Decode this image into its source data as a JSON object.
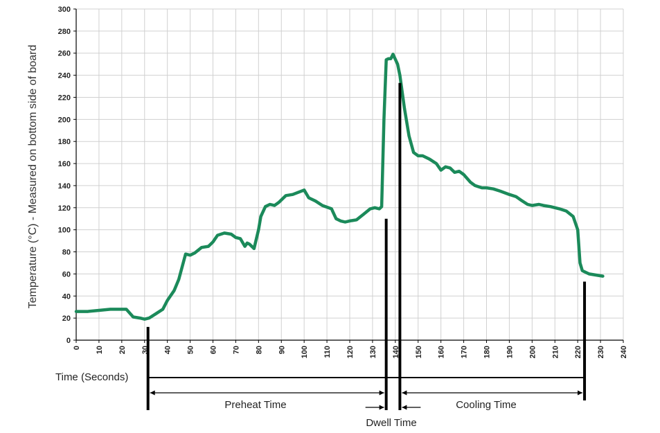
{
  "colors": {
    "curve": "#1b8a5a",
    "grid": "#d0d0d0",
    "axis": "#000000",
    "marker": "#000000"
  },
  "chart_data": {
    "type": "line",
    "title": "",
    "xlabel": "Time (Seconds)",
    "ylabel": "Temperature (°C) - Measured on bottom side of board",
    "xlim": [
      0,
      240
    ],
    "ylim": [
      0,
      300
    ],
    "x_ticks": [
      0,
      10,
      20,
      30,
      40,
      50,
      60,
      70,
      80,
      90,
      100,
      110,
      120,
      130,
      140,
      150,
      160,
      170,
      180,
      190,
      200,
      210,
      220,
      230,
      240
    ],
    "y_ticks": [
      0,
      20,
      40,
      60,
      80,
      100,
      120,
      140,
      160,
      180,
      200,
      220,
      240,
      260,
      280,
      300
    ],
    "grid": true,
    "series": [
      {
        "x": [
          0,
          5,
          10,
          15,
          20,
          22,
          25,
          28,
          30,
          32,
          35,
          38,
          40,
          43,
          45,
          48,
          50,
          52,
          55,
          58,
          60,
          62,
          65,
          68,
          70,
          72,
          74,
          75,
          76,
          78,
          80,
          81,
          83,
          85,
          87,
          89,
          92,
          95,
          100,
          102,
          105,
          108,
          112,
          114,
          116,
          118,
          120,
          123,
          126,
          129,
          131,
          133,
          134,
          135,
          136,
          137,
          138,
          139,
          141,
          142,
          143,
          144,
          146,
          148,
          150,
          152,
          155,
          158,
          160,
          162,
          164,
          166,
          168,
          170,
          173,
          175,
          178,
          180,
          183,
          186,
          190,
          193,
          195,
          198,
          200,
          203,
          205,
          208,
          212,
          215,
          218,
          220,
          221,
          222,
          223,
          225,
          228,
          231
        ],
        "values": [
          26,
          26,
          27,
          28,
          28,
          28,
          21,
          20,
          19,
          20,
          24,
          28,
          36,
          45,
          55,
          78,
          77,
          79,
          84,
          85,
          89,
          95,
          97,
          96,
          93,
          92,
          85,
          88,
          87,
          83,
          100,
          112,
          121,
          123,
          122,
          125,
          131,
          132,
          136,
          129,
          126,
          122,
          119,
          110,
          108,
          107,
          108,
          109,
          114,
          119,
          120,
          119,
          121,
          200,
          254,
          255,
          255,
          259,
          250,
          240,
          225,
          210,
          185,
          170,
          167,
          167,
          164,
          160,
          154,
          157,
          156,
          152,
          153,
          150,
          143,
          140,
          138,
          138,
          137,
          135,
          132,
          130,
          127,
          123,
          122,
          123,
          122,
          121,
          119,
          117,
          112,
          100,
          70,
          63,
          62,
          60,
          59,
          58
        ]
      }
    ],
    "markers": [
      {
        "x": 31.5,
        "y": 12
      },
      {
        "x": 136,
        "y": 110
      },
      {
        "x": 142,
        "y": 233
      },
      {
        "x": 223,
        "y": 53
      }
    ],
    "annotations": {
      "preheat": "Preheat Time",
      "dwell": "Dwell Time",
      "cooling": "Cooling Time"
    }
  }
}
